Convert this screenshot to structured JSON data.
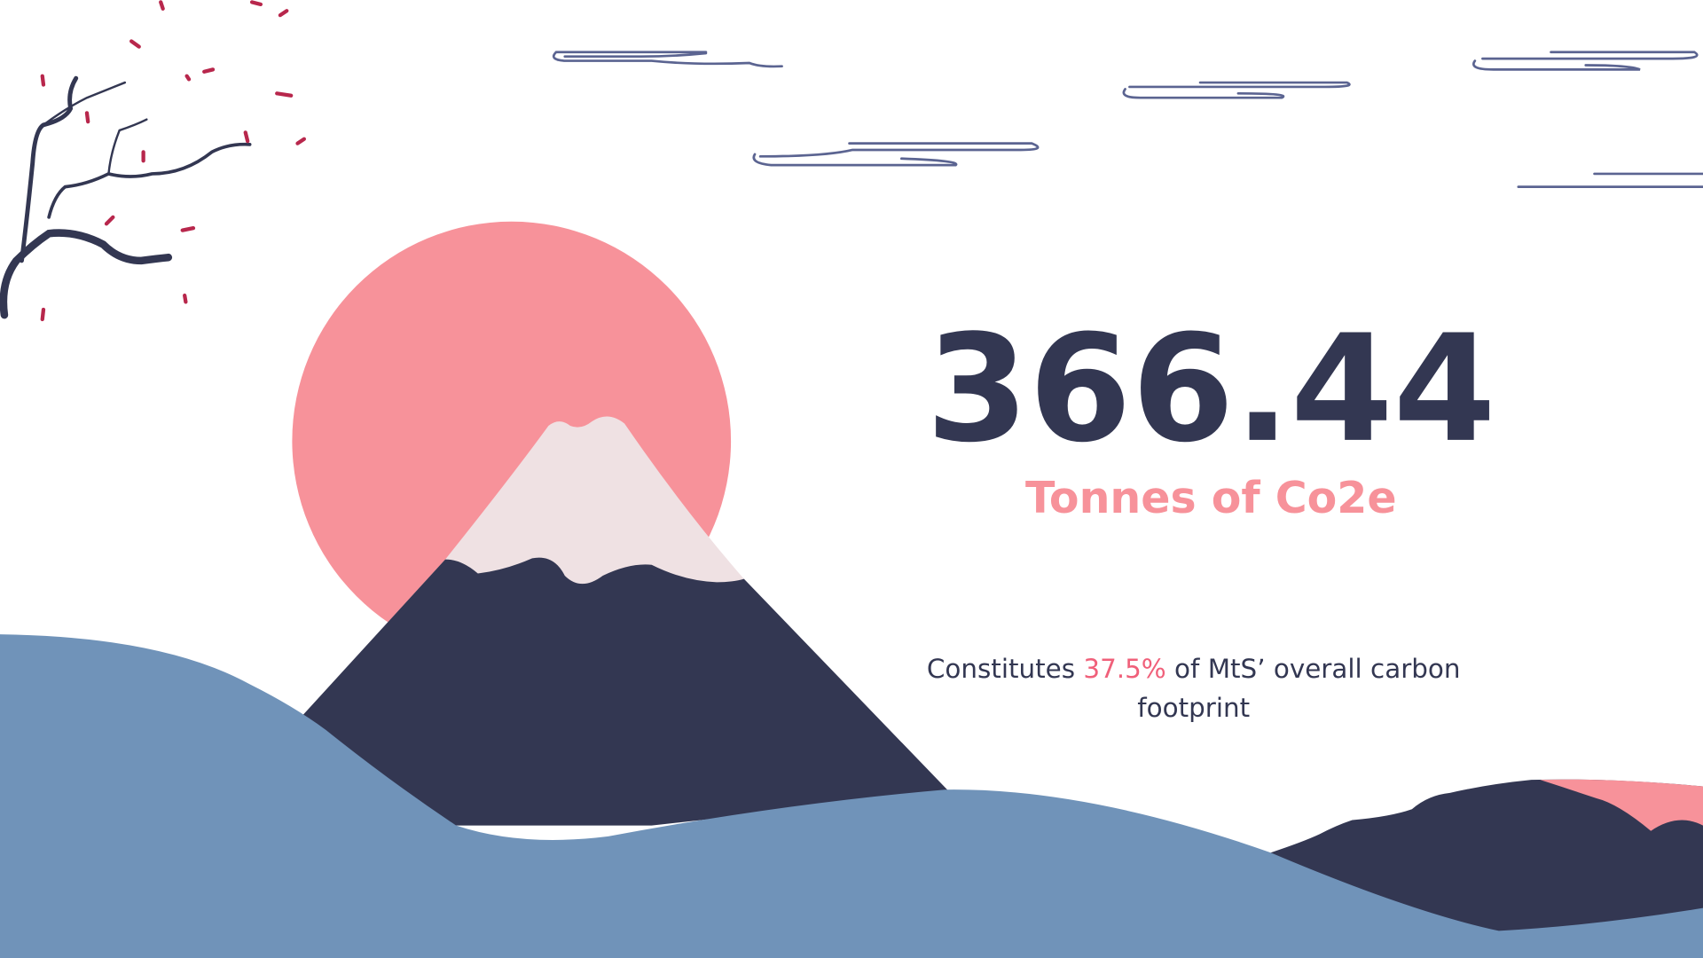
{
  "headline": {
    "value": "366.44",
    "unit": "Tonnes of Co2e"
  },
  "caption": {
    "before": "Constitutes",
    "highlight": "37.5%",
    "after": "of MtS’ overall carbon",
    "end": "footprint"
  }
}
